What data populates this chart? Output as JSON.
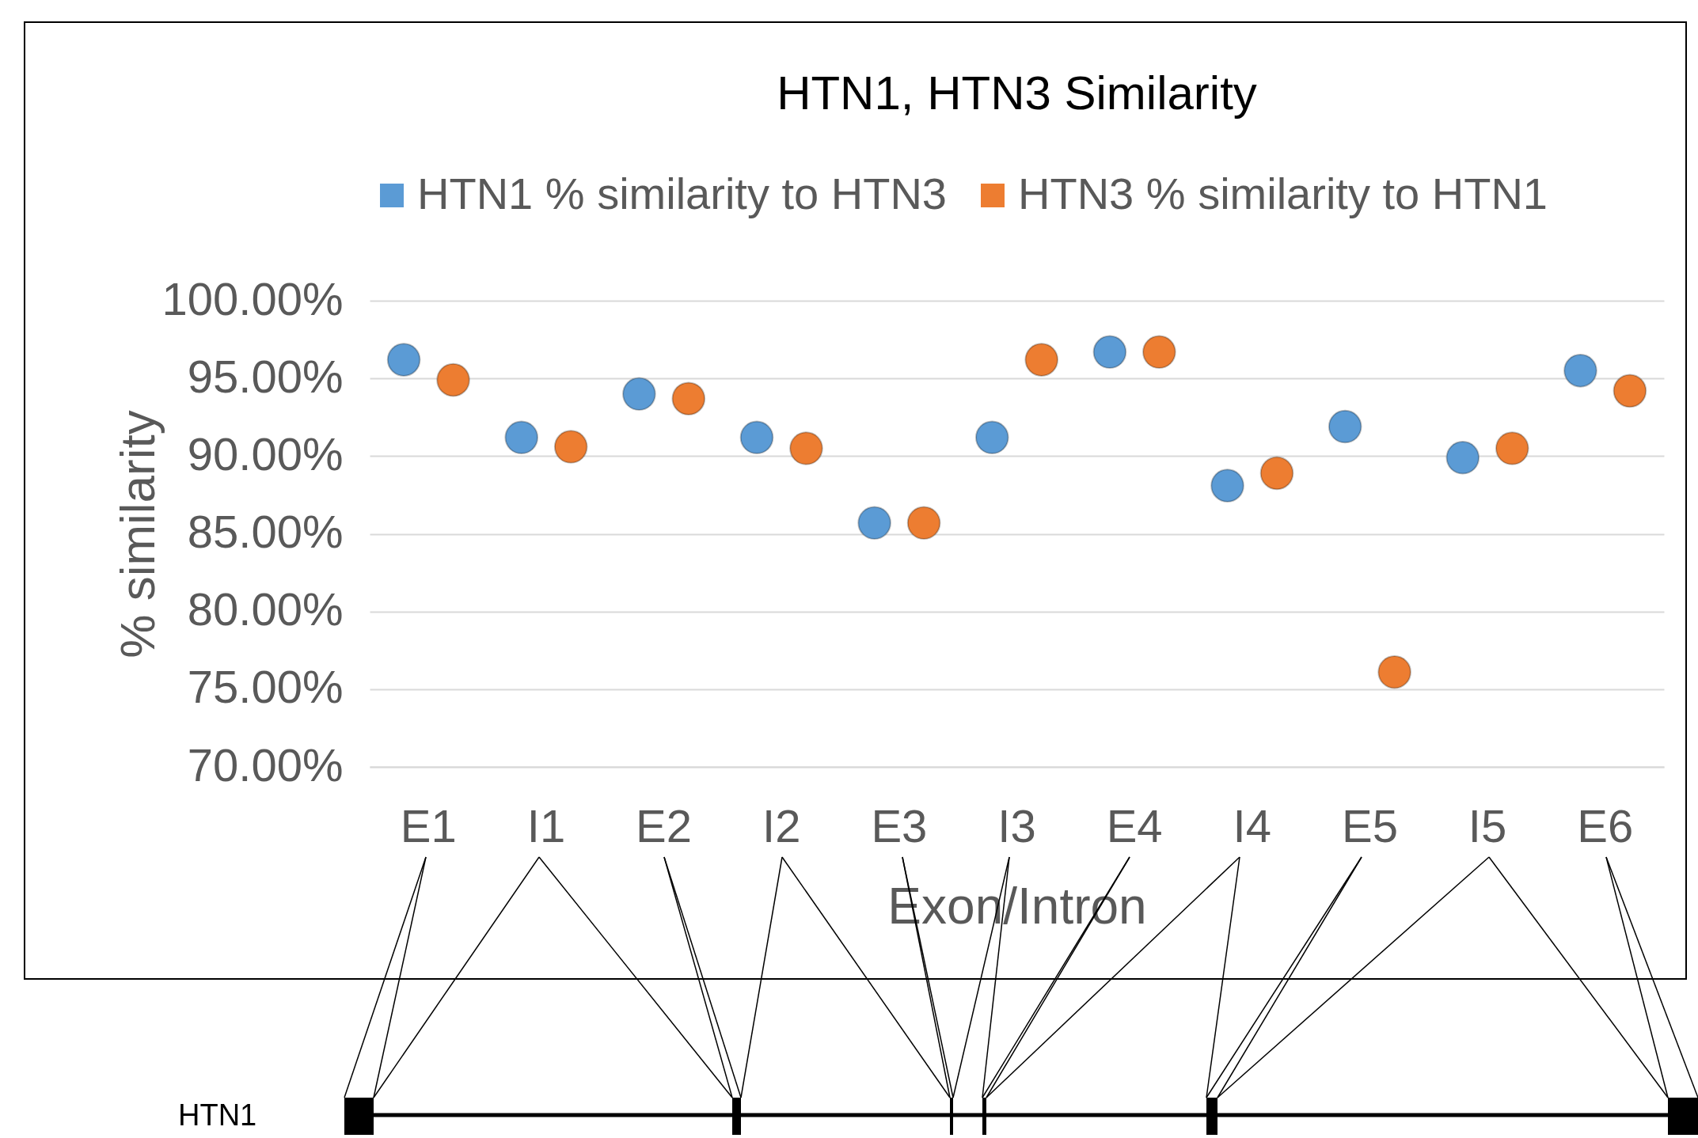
{
  "chart_data": {
    "type": "scatter",
    "title": "HTN1, HTN3 Similarity",
    "xlabel": "Exon/Intron",
    "ylabel": "% similarity",
    "categories": [
      "E1",
      "I1",
      "E2",
      "I2",
      "E3",
      "I3",
      "E4",
      "I4",
      "E5",
      "I5",
      "E6"
    ],
    "series": [
      {
        "name": "HTN1 % similarity to HTN3",
        "color": "#5b9bd5",
        "values": [
          96.2,
          91.2,
          94.0,
          91.2,
          85.7,
          91.2,
          96.7,
          88.1,
          91.9,
          89.9,
          95.5
        ]
      },
      {
        "name": "HTN3 % similarity to HTN1",
        "color": "#ed7d31",
        "values": [
          94.9,
          90.6,
          93.7,
          90.5,
          85.7,
          96.2,
          96.7,
          88.9,
          76.1,
          90.5,
          94.2
        ]
      }
    ],
    "ylim": [
      70,
      100
    ],
    "yticks": [
      {
        "value": 70,
        "label": "70.00%"
      },
      {
        "value": 75,
        "label": "75.00%"
      },
      {
        "value": 80,
        "label": "80.00%"
      },
      {
        "value": 85,
        "label": "85.00%"
      },
      {
        "value": 90,
        "label": "90.00%"
      },
      {
        "value": 95,
        "label": "95.00%"
      },
      {
        "value": 100,
        "label": "100.00%"
      }
    ],
    "grid": "y",
    "legend": "top",
    "marker": "circle",
    "annotations": [
      "HTN1"
    ]
  }
}
